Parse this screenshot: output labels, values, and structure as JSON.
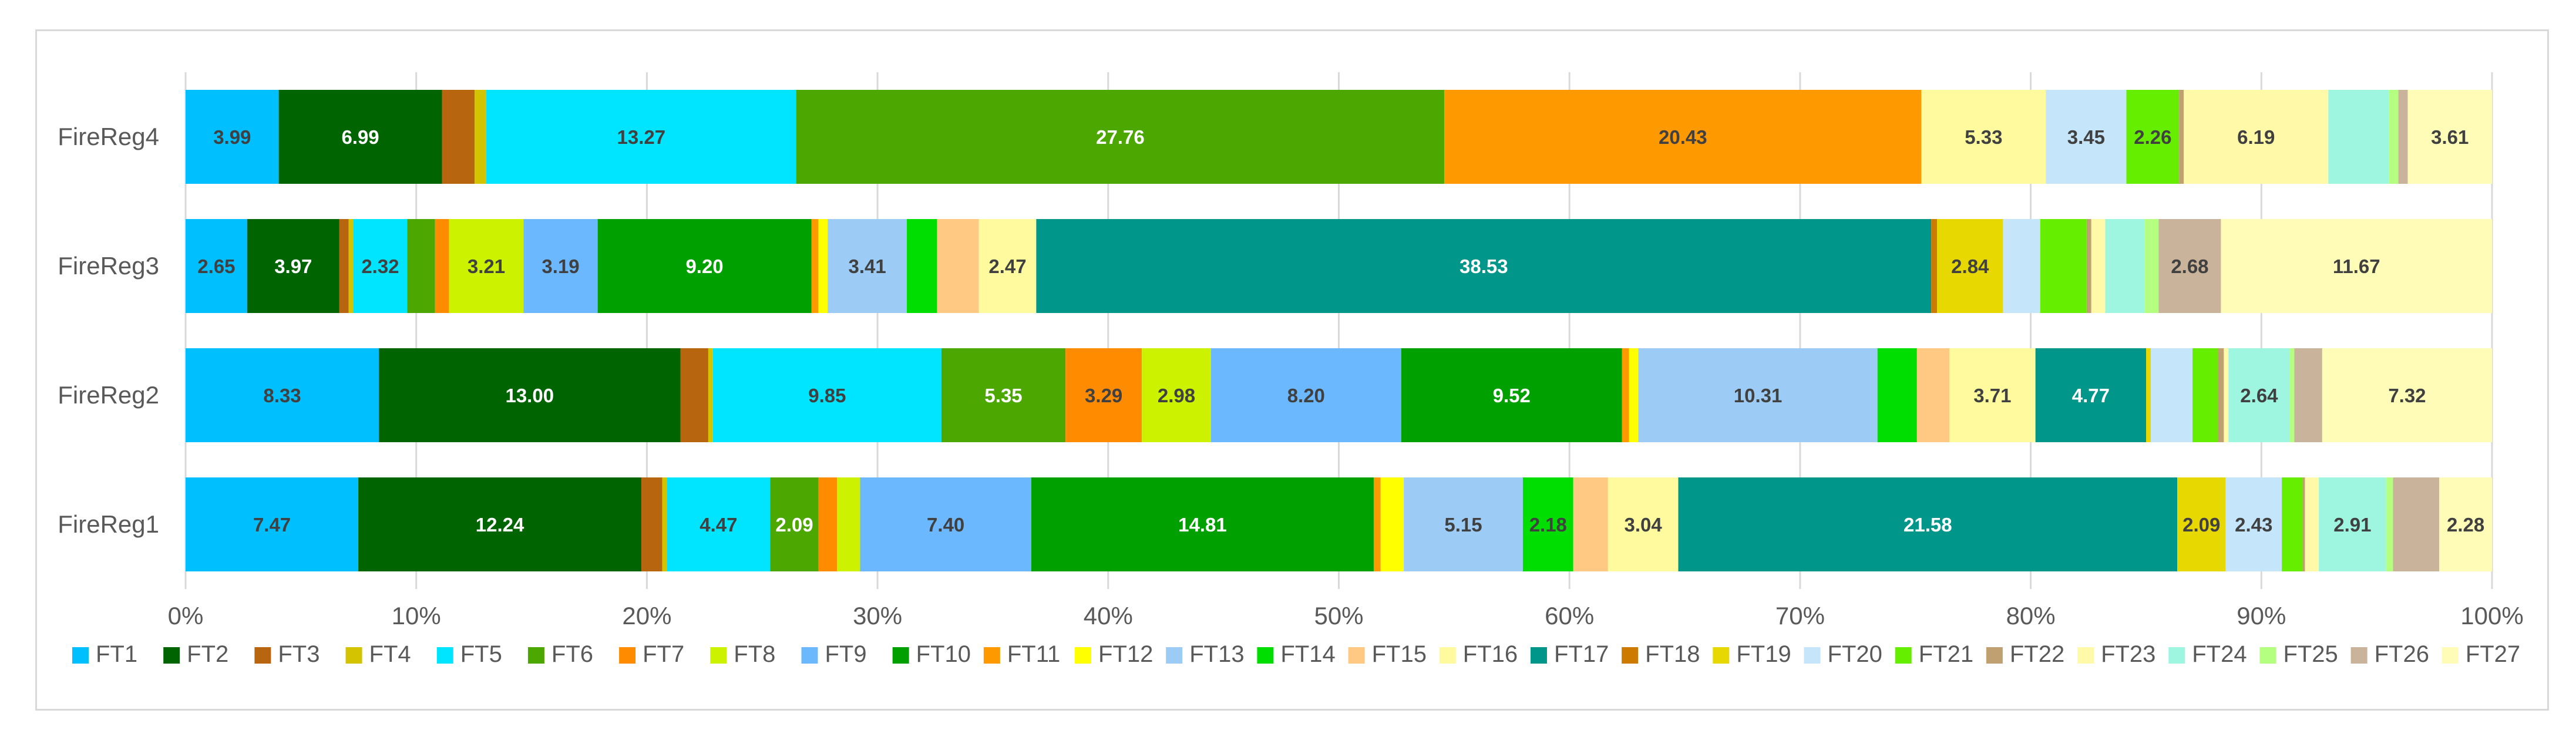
{
  "chart_data": {
    "type": "bar",
    "orientation": "horizontal",
    "stacked": "percent",
    "title": "",
    "xlabel": "",
    "ylabel": "",
    "xlim": [
      0,
      100
    ],
    "x_ticks": [
      "0%",
      "10%",
      "20%",
      "30%",
      "40%",
      "50%",
      "60%",
      "70%",
      "80%",
      "90%",
      "100%"
    ],
    "grid": "vertical",
    "legend_position": "bottom",
    "categories": [
      "FireReg4",
      "FireReg3",
      "FireReg2",
      "FireReg1"
    ],
    "series": [
      {
        "name": "FT1",
        "color": "#00BFFF",
        "label_color": "#404040",
        "values": [
          3.99,
          2.65,
          8.33,
          7.47
        ],
        "labels": [
          "3.99",
          "2.65",
          "8.33",
          "7.47"
        ]
      },
      {
        "name": "FT2",
        "color": "#006400",
        "label_color": "#ffffff",
        "values": [
          6.99,
          3.97,
          13.0,
          12.24
        ],
        "labels": [
          "6.99",
          "3.97",
          "13.00",
          "12.24"
        ]
      },
      {
        "name": "FT3",
        "color": "#B8650F",
        "label_color": "#404040",
        "values": [
          1.4,
          0.4,
          1.2,
          0.9
        ],
        "labels": [
          "",
          "",
          "",
          ""
        ]
      },
      {
        "name": "FT4",
        "color": "#D4C300",
        "label_color": "#404040",
        "values": [
          0.5,
          0.2,
          0.2,
          0.2
        ],
        "labels": [
          "",
          "",
          "",
          ""
        ]
      },
      {
        "name": "FT5",
        "color": "#00E5FF",
        "label_color": "#404040",
        "values": [
          13.27,
          2.32,
          9.85,
          4.47
        ],
        "labels": [
          "13.27",
          "2.32",
          "9.85",
          "4.47"
        ]
      },
      {
        "name": "FT6",
        "color": "#4CA800",
        "label_color": "#ffffff",
        "values": [
          27.76,
          1.2,
          5.35,
          2.09
        ],
        "labels": [
          "27.76",
          "",
          "5.35",
          "2.09"
        ]
      },
      {
        "name": "FT7",
        "color": "#FF8C00",
        "label_color": "#404040",
        "values": [
          0.0,
          0.6,
          3.29,
          0.8
        ],
        "labels": [
          "",
          "",
          "3.29",
          ""
        ]
      },
      {
        "name": "FT8",
        "color": "#CCF200",
        "label_color": "#404040",
        "values": [
          0.0,
          3.21,
          2.98,
          1.0
        ],
        "labels": [
          "",
          "3.21",
          "2.98",
          ""
        ]
      },
      {
        "name": "FT9",
        "color": "#6CB8FF",
        "label_color": "#404040",
        "values": [
          0.0,
          3.19,
          8.2,
          7.4
        ],
        "labels": [
          "",
          "3.19",
          "8.20",
          "7.40"
        ]
      },
      {
        "name": "FT10",
        "color": "#00A000",
        "label_color": "#ffffff",
        "values": [
          0.0,
          9.2,
          9.52,
          14.81
        ],
        "labels": [
          "",
          "9.20",
          "9.52",
          "14.81"
        ]
      },
      {
        "name": "FT11",
        "color": "#FF9900",
        "label_color": "#404040",
        "values": [
          20.43,
          0.3,
          0.3,
          0.3
        ],
        "labels": [
          "20.43",
          "",
          "",
          ""
        ]
      },
      {
        "name": "FT12",
        "color": "#FFFF00",
        "label_color": "#404040",
        "values": [
          0.0,
          0.4,
          0.4,
          1.0
        ],
        "labels": [
          "",
          "",
          "",
          ""
        ]
      },
      {
        "name": "FT13",
        "color": "#9CCCF5",
        "label_color": "#404040",
        "values": [
          0.0,
          3.41,
          10.31,
          5.15
        ],
        "labels": [
          "",
          "3.41",
          "10.31",
          "5.15"
        ]
      },
      {
        "name": "FT14",
        "color": "#00DD00",
        "label_color": "#404040",
        "values": [
          0.0,
          1.3,
          1.7,
          2.18
        ],
        "labels": [
          "",
          "",
          "",
          "2.18"
        ]
      },
      {
        "name": "FT15",
        "color": "#FFC983",
        "label_color": "#404040",
        "values": [
          0.0,
          1.8,
          1.4,
          1.5
        ],
        "labels": [
          "",
          "",
          "",
          ""
        ]
      },
      {
        "name": "FT16",
        "color": "#FFFA9E",
        "label_color": "#404040",
        "values": [
          5.33,
          2.47,
          3.71,
          3.04
        ],
        "labels": [
          "5.33",
          "2.47",
          "3.71",
          "3.04"
        ]
      },
      {
        "name": "FT17",
        "color": "#00968A",
        "label_color": "#ffffff",
        "values": [
          0.0,
          38.53,
          4.77,
          21.58
        ],
        "labels": [
          "",
          "38.53",
          "4.77",
          "21.58"
        ]
      },
      {
        "name": "FT18",
        "color": "#CC7A00",
        "label_color": "#404040",
        "values": [
          0.0,
          0.25,
          0.0,
          0.0
        ],
        "labels": [
          "",
          "",
          "",
          ""
        ]
      },
      {
        "name": "FT19",
        "color": "#E6D800",
        "label_color": "#404040",
        "values": [
          0.0,
          2.84,
          0.2,
          2.09
        ],
        "labels": [
          "",
          "2.84",
          "",
          "2.09"
        ]
      },
      {
        "name": "FT20",
        "color": "#C5E5FA",
        "label_color": "#404040",
        "values": [
          3.45,
          1.6,
          1.8,
          2.43
        ],
        "labels": [
          "3.45",
          "",
          "",
          "2.43"
        ]
      },
      {
        "name": "FT21",
        "color": "#66EE00",
        "label_color": "#404040",
        "values": [
          2.26,
          2.0,
          1.1,
          0.9
        ],
        "labels": [
          "2.26",
          "",
          "",
          ""
        ]
      },
      {
        "name": "FT22",
        "color": "#C0A070",
        "label_color": "#404040",
        "values": [
          0.2,
          0.2,
          0.25,
          0.1
        ],
        "labels": [
          "",
          "",
          "",
          ""
        ]
      },
      {
        "name": "FT23",
        "color": "#FFF9A8",
        "label_color": "#404040",
        "values": [
          6.19,
          0.6,
          0.2,
          0.6
        ],
        "labels": [
          "6.19",
          "",
          "",
          ""
        ]
      },
      {
        "name": "FT24",
        "color": "#9EF5E0",
        "label_color": "#404040",
        "values": [
          2.6,
          1.7,
          2.64,
          2.91
        ],
        "labels": [
          "",
          "",
          "2.64",
          "2.91"
        ]
      },
      {
        "name": "FT25",
        "color": "#B4FF80",
        "label_color": "#404040",
        "values": [
          0.4,
          0.6,
          0.2,
          0.3
        ],
        "labels": [
          "",
          "",
          "",
          ""
        ]
      },
      {
        "name": "FT26",
        "color": "#C9B39A",
        "label_color": "#404040",
        "values": [
          0.4,
          2.68,
          1.2,
          2.0
        ],
        "labels": [
          "",
          "2.68",
          "",
          ""
        ]
      },
      {
        "name": "FT27",
        "color": "#FFFCB8",
        "label_color": "#404040",
        "values": [
          3.61,
          11.67,
          7.32,
          2.28
        ],
        "labels": [
          "3.61",
          "11.67",
          "7.32",
          "2.28"
        ]
      }
    ]
  }
}
